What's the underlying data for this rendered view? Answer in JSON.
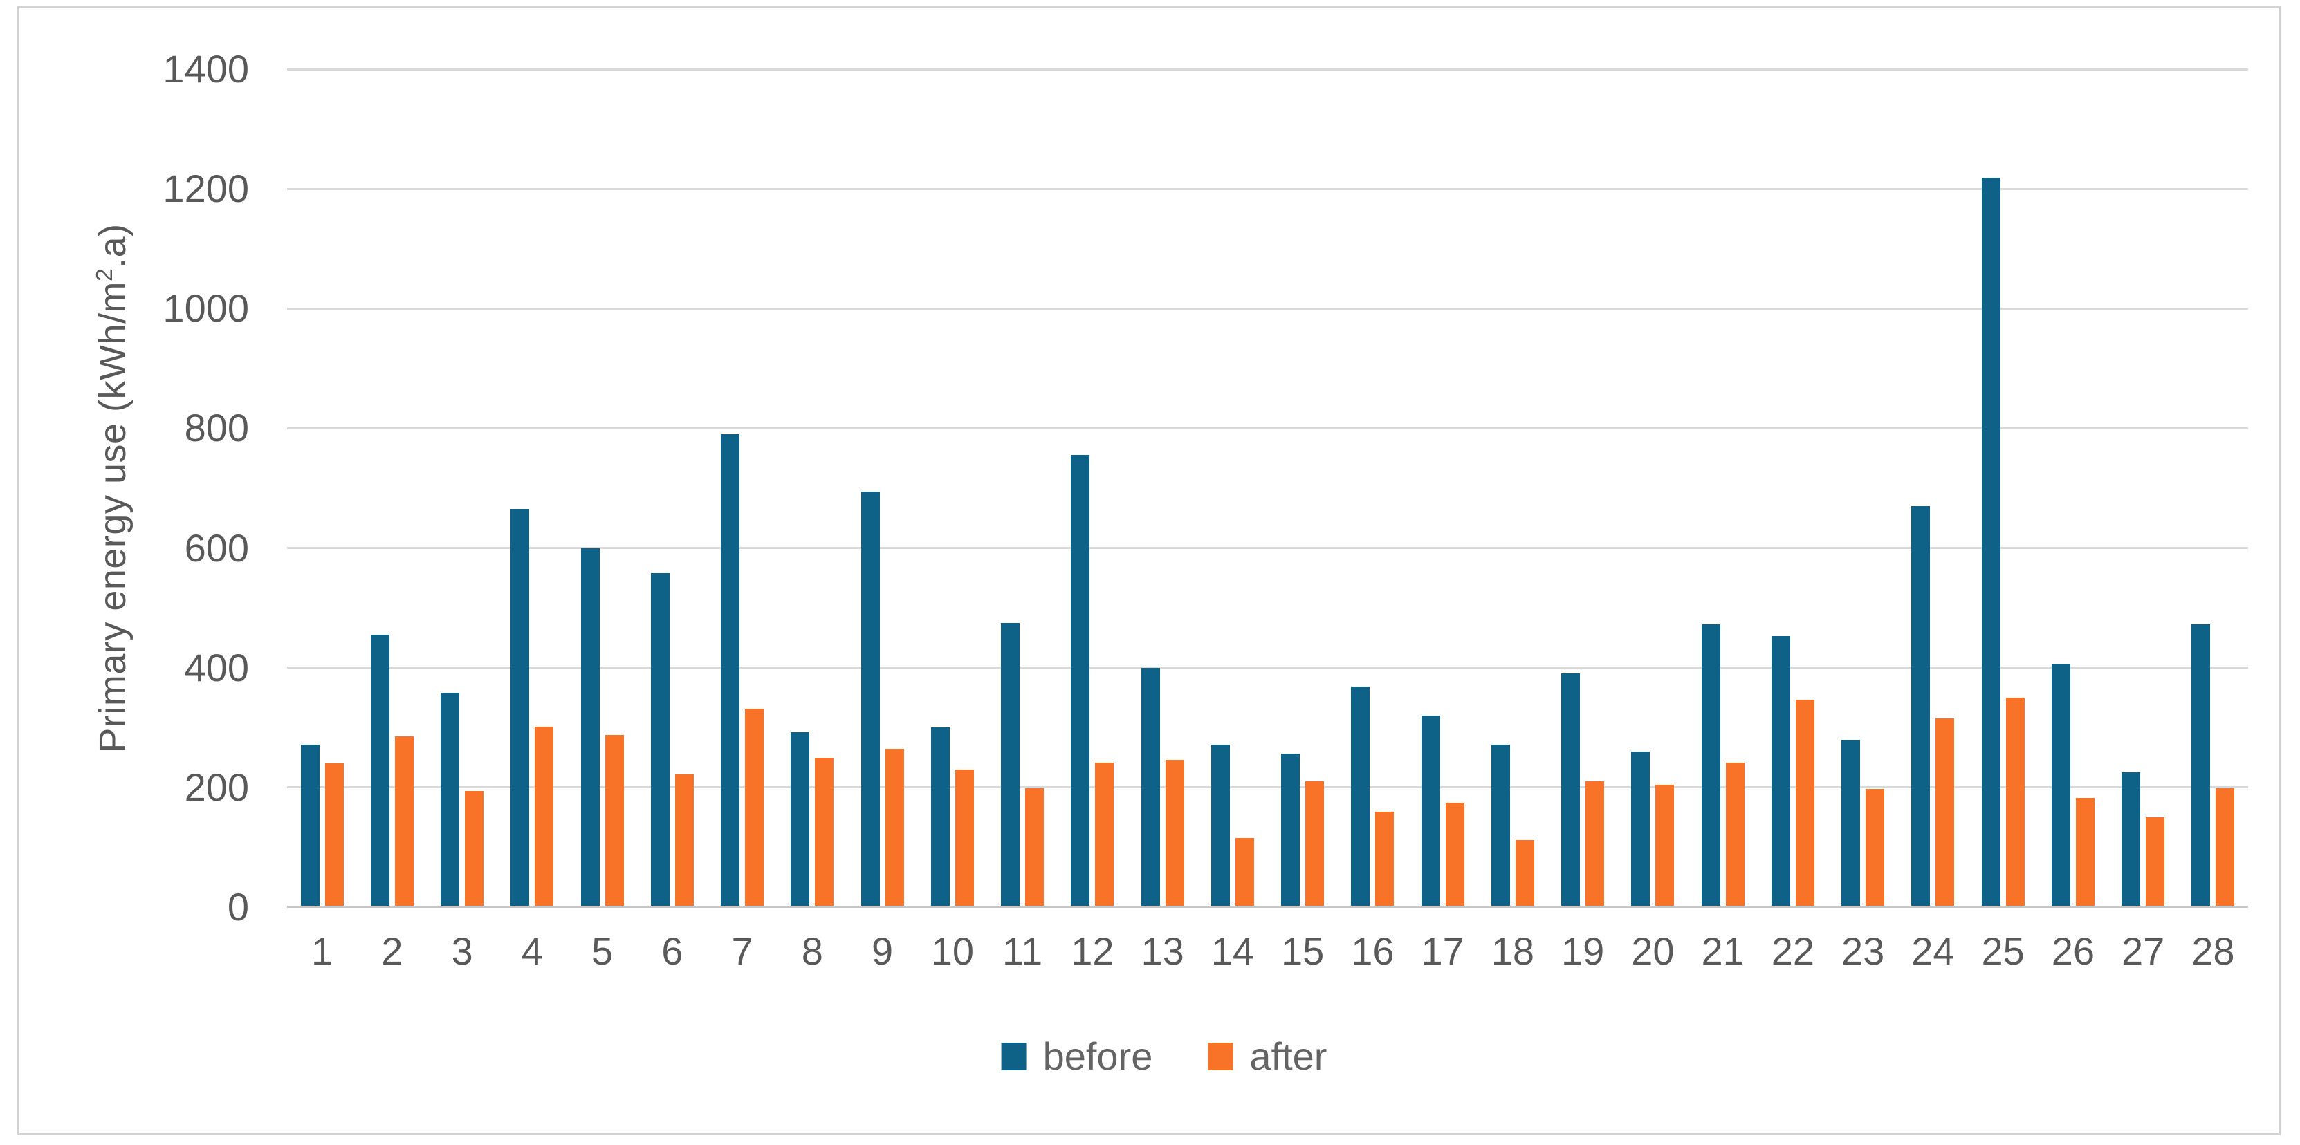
{
  "figure": {
    "background_color": "#ffffff",
    "border_color": "#d2d2d2"
  },
  "chart_data": {
    "type": "bar",
    "title": "",
    "xlabel": "",
    "ylabel": "Primary energy use (kWh/m2.a)",
    "ylabel_parts": {
      "pre": "Primary energy use (kWh/m",
      "sup": "2",
      "post": ".a)"
    },
    "ylim": [
      0,
      1400
    ],
    "ytick_step": 200,
    "yticks": [
      0,
      200,
      400,
      600,
      800,
      1000,
      1200,
      1400
    ],
    "grid": "horizontal",
    "gridline_color": "#d9d9d9",
    "axis_line_color": "#c8c8c8",
    "tick_text_color": "#595959",
    "legend_position": "bottom",
    "categories": [
      "1",
      "2",
      "3",
      "4",
      "5",
      "6",
      "7",
      "8",
      "9",
      "10",
      "11",
      "12",
      "13",
      "14",
      "15",
      "16",
      "17",
      "18",
      "19",
      "20",
      "21",
      "22",
      "23",
      "24",
      "25",
      "26",
      "27",
      "28"
    ],
    "series": [
      {
        "name": "before",
        "color": "#0e6287",
        "values": [
          272,
          455,
          358,
          665,
          600,
          558,
          790,
          292,
          694,
          300,
          475,
          755,
          400,
          272,
          256,
          368,
          320,
          271,
          391,
          260,
          472,
          453,
          280,
          670,
          1219,
          407,
          225,
          473
        ]
      },
      {
        "name": "after",
        "color": "#f87327",
        "values": [
          240,
          285,
          194,
          301,
          288,
          222,
          331,
          250,
          264,
          230,
          199,
          241,
          246,
          115,
          210,
          159,
          174,
          112,
          210,
          205,
          242,
          346,
          198,
          315,
          350,
          183,
          150,
          199
        ]
      }
    ]
  }
}
